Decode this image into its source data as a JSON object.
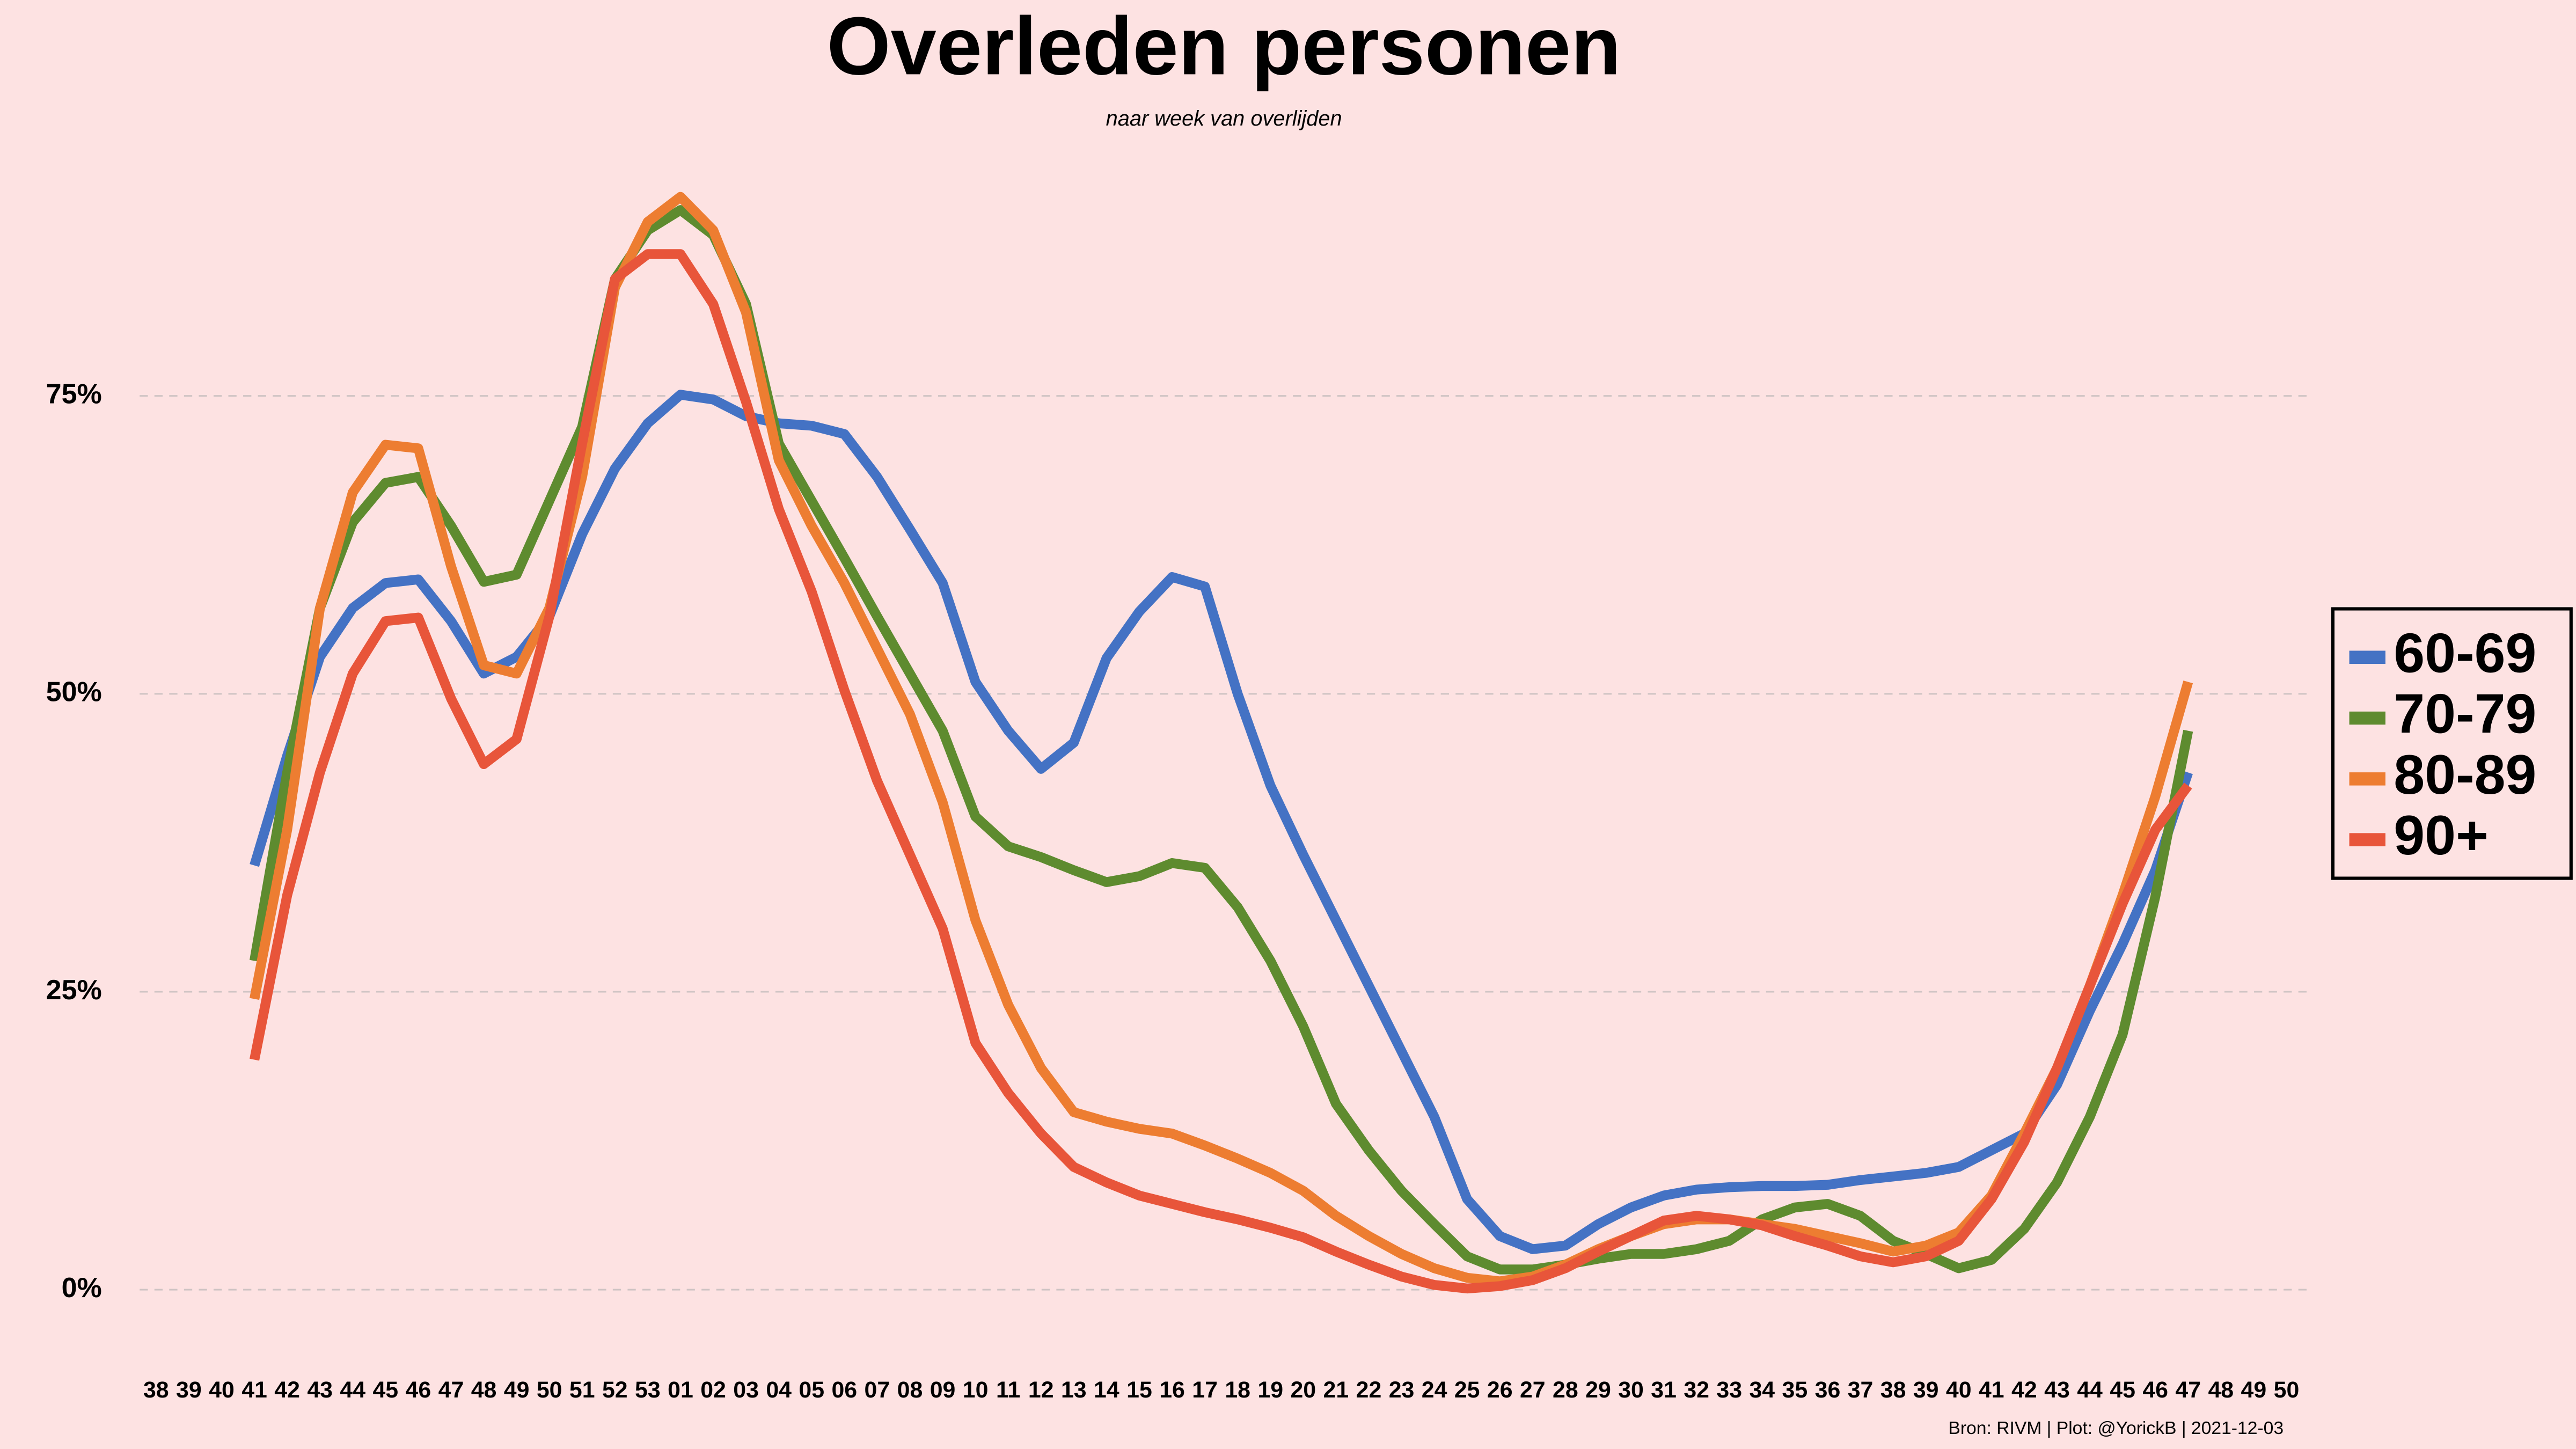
{
  "chart_data": {
    "type": "line",
    "title": "Overleden personen",
    "subtitle": "naar week van overlijden",
    "source": "Bron: RIVM | Plot: @YorickB |  2021-12-03",
    "categories": [
      "38",
      "39",
      "40",
      "41",
      "42",
      "43",
      "44",
      "45",
      "46",
      "47",
      "48",
      "49",
      "50",
      "51",
      "52",
      "53",
      "01",
      "02",
      "03",
      "04",
      "05",
      "06",
      "07",
      "08",
      "09",
      "10",
      "11",
      "12",
      "13",
      "14",
      "15",
      "16",
      "17",
      "18",
      "19",
      "20",
      "21",
      "22",
      "23",
      "24",
      "25",
      "26",
      "27",
      "28",
      "29",
      "30",
      "31",
      "32",
      "33",
      "34",
      "35",
      "36",
      "37",
      "38",
      "39",
      "40",
      "41",
      "42",
      "43",
      "44",
      "45",
      "46",
      "47",
      "48",
      "49",
      "50"
    ],
    "ylim": [
      -5,
      95
    ],
    "yticks": [
      {
        "value": 0,
        "label": "0%"
      },
      {
        "value": 25,
        "label": "25%"
      },
      {
        "value": 50,
        "label": "50%"
      },
      {
        "value": 75,
        "label": "75%"
      }
    ],
    "grid": true,
    "legend": "right",
    "series": [
      {
        "name": "60-69",
        "color": "#4472c4",
        "values": [
          null,
          null,
          null,
          35.6,
          44.8,
          53.1,
          57.2,
          59.3,
          59.6,
          56.1,
          51.7,
          53.1,
          56.5,
          63.4,
          68.9,
          72.7,
          75.1,
          74.7,
          73.3,
          72.7,
          72.5,
          71.8,
          68.2,
          63.8,
          59.3,
          51,
          46.9,
          43.7,
          45.9,
          53,
          56.9,
          59.8,
          59,
          50,
          42.3,
          36.5,
          31,
          25.5,
          20,
          14.5,
          7.6,
          4.5,
          3.4,
          3.7,
          5.5,
          6.9,
          7.9,
          8.4,
          8.6,
          8.7,
          8.7,
          8.8,
          9.2,
          9.5,
          9.8,
          10.3,
          11.7,
          13.1,
          17.2,
          23.4,
          29,
          35.2,
          43.4,
          null,
          null,
          null
        ]
      },
      {
        "name": "70-79",
        "color": "#5e8b2f",
        "values": [
          null,
          null,
          null,
          27.6,
          43.4,
          57.2,
          64.4,
          67.7,
          68.2,
          64.1,
          59.4,
          60,
          66.2,
          72.4,
          84.8,
          88.9,
          90.6,
          88.5,
          82.7,
          71,
          66.2,
          61.4,
          56.5,
          51.7,
          46.9,
          39.7,
          37.2,
          36.3,
          35.2,
          34.2,
          34.7,
          35.8,
          35.4,
          32.1,
          27.6,
          22.1,
          15.6,
          11.7,
          8.3,
          5.5,
          2.8,
          1.7,
          1.7,
          2.1,
          2.6,
          3,
          3,
          3.4,
          4.1,
          5.9,
          6.9,
          7.2,
          6.2,
          4.1,
          3,
          1.8,
          2.5,
          5.1,
          9,
          14.5,
          21.4,
          33,
          46.9,
          null,
          null,
          null
        ]
      },
      {
        "name": "80-89",
        "color": "#ed7d31",
        "values": [
          null,
          null,
          null,
          24.4,
          38.6,
          57.2,
          66.9,
          70.9,
          70.6,
          60.7,
          52.4,
          51.7,
          57.2,
          68.2,
          84.1,
          89.6,
          91.7,
          88.9,
          82,
          69.6,
          64.1,
          59.3,
          53.8,
          48.3,
          40.9,
          31,
          23.9,
          18.6,
          14.9,
          14.1,
          13.5,
          13.1,
          12.1,
          11,
          9.8,
          8.3,
          6.2,
          4.5,
          3,
          1.8,
          1,
          0.7,
          1.1,
          2.1,
          3.4,
          4.5,
          5.5,
          5.9,
          5.9,
          5.5,
          5.1,
          4.5,
          3.9,
          3.2,
          3.7,
          4.8,
          7.9,
          13.1,
          18.6,
          25.5,
          33.1,
          41.4,
          51,
          null,
          null,
          null
        ]
      },
      {
        "name": "90+",
        "color": "#e8553a",
        "values": [
          null,
          null,
          null,
          19.3,
          33.1,
          43.4,
          51.7,
          56.1,
          56.4,
          49.6,
          44.1,
          46.2,
          56.5,
          71,
          84.8,
          86.9,
          86.9,
          82.7,
          74.5,
          65.5,
          58.6,
          50.3,
          42.7,
          36.5,
          30.3,
          20.7,
          16.5,
          13.1,
          10.3,
          9,
          7.9,
          7.2,
          6.5,
          5.9,
          5.2,
          4.4,
          3.2,
          2.1,
          1.1,
          0.4,
          0.1,
          0.3,
          0.8,
          1.8,
          3.2,
          4.5,
          5.8,
          6.2,
          5.9,
          5.4,
          4.5,
          3.7,
          2.8,
          2.3,
          2.8,
          4.1,
          7.6,
          12.4,
          18.6,
          25.5,
          32.4,
          38.6,
          42.3,
          null,
          null,
          null
        ]
      }
    ]
  }
}
